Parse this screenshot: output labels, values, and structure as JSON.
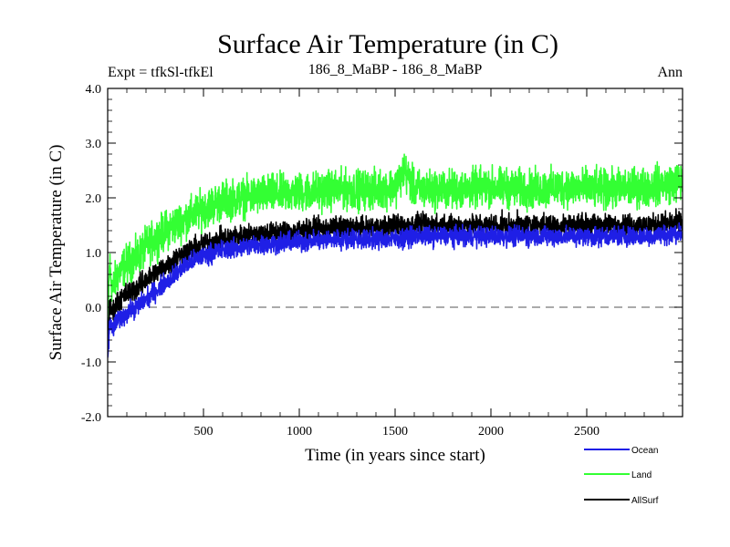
{
  "chart_data": {
    "type": "line",
    "title": "Surface Air Temperature (in C)",
    "subtitle_left": "Expt = tfkSl-tfkEl",
    "subtitle_center": "186_8_MaBP - 186_8_MaBP",
    "subtitle_right": "Ann",
    "xlabel": "Time (in years since start)",
    "ylabel": "Surface Air Temperature (in C)",
    "xlim": [
      0,
      3000
    ],
    "ylim": [
      -2.0,
      4.0
    ],
    "x_ticks": [
      500,
      1000,
      1500,
      2000,
      2500
    ],
    "x_tick_labels": [
      "500",
      "1000",
      "1500",
      "2000",
      "2500"
    ],
    "y_ticks": [
      -2.0,
      -1.0,
      0.0,
      1.0,
      2.0,
      3.0,
      4.0
    ],
    "y_tick_labels": [
      "-2.0",
      "-1.0",
      "0.0",
      "1.0",
      "2.0",
      "3.0",
      "4.0"
    ],
    "reference_line": {
      "y": 0.0,
      "style": "dashed",
      "color": "#777777"
    },
    "series": [
      {
        "name": "Land",
        "color": "#33ff33",
        "x": [
          0,
          10,
          25,
          50,
          100,
          150,
          200,
          300,
          400,
          500,
          600,
          700,
          800,
          1000,
          1200,
          1400,
          1500,
          1550,
          1600,
          1800,
          2000,
          2200,
          2400,
          2600,
          2800,
          3000
        ],
        "values": [
          -0.3,
          0.8,
          0.3,
          0.6,
          0.8,
          0.9,
          1.1,
          1.4,
          1.6,
          1.8,
          1.95,
          2.0,
          2.05,
          2.1,
          2.15,
          2.15,
          2.2,
          2.5,
          2.15,
          2.15,
          2.2,
          2.15,
          2.2,
          2.15,
          2.2,
          2.3
        ],
        "noise": 0.3
      },
      {
        "name": "AllSurf",
        "color": "#000000",
        "x": [
          0,
          10,
          25,
          50,
          100,
          150,
          200,
          300,
          400,
          500,
          600,
          700,
          800,
          1000,
          1200,
          1400,
          1500,
          1600,
          1800,
          2000,
          2200,
          2400,
          2600,
          2800,
          3000
        ],
        "values": [
          -0.8,
          0.0,
          -0.1,
          0.1,
          0.25,
          0.35,
          0.5,
          0.75,
          1.0,
          1.15,
          1.25,
          1.3,
          1.35,
          1.4,
          1.45,
          1.45,
          1.5,
          1.5,
          1.5,
          1.5,
          1.5,
          1.5,
          1.5,
          1.5,
          1.55
        ],
        "noise": 0.17
      },
      {
        "name": "Ocean",
        "color": "#1f1fe6",
        "x": [
          0,
          10,
          25,
          50,
          100,
          150,
          200,
          300,
          400,
          500,
          600,
          700,
          800,
          1000,
          1200,
          1400,
          1500,
          1600,
          1800,
          2000,
          2200,
          2400,
          2600,
          2800,
          3000
        ],
        "values": [
          -1.0,
          -0.3,
          -0.4,
          -0.25,
          -0.1,
          0.0,
          0.15,
          0.45,
          0.75,
          0.95,
          1.05,
          1.1,
          1.15,
          1.2,
          1.25,
          1.25,
          1.25,
          1.3,
          1.3,
          1.3,
          1.3,
          1.3,
          1.3,
          1.3,
          1.35
        ],
        "noise": 0.15
      }
    ],
    "legend": {
      "placement": "bottom-right",
      "order": [
        "Ocean",
        "Land",
        "AllSurf"
      ]
    }
  }
}
